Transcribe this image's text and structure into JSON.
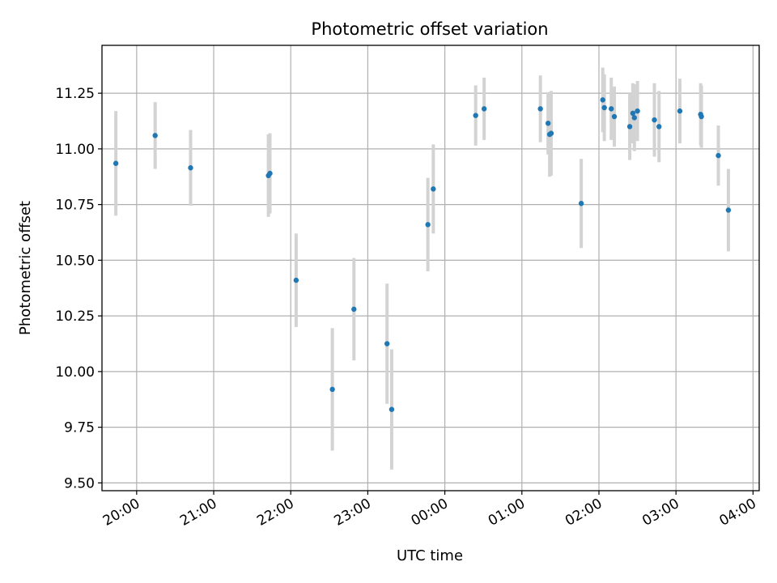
{
  "chart_data": {
    "type": "scatter",
    "title": "Photometric offset variation",
    "xlabel": "UTC time",
    "ylabel": "Photometric offset",
    "grid": true,
    "xlim": [
      -4.45,
      4.08
    ],
    "ylim": [
      9.465,
      11.465
    ],
    "x_unit": "hours relative to 00:00 UTC",
    "x_ticks": [
      {
        "value": -4,
        "label": "20:00"
      },
      {
        "value": -3,
        "label": "21:00"
      },
      {
        "value": -2,
        "label": "22:00"
      },
      {
        "value": -1,
        "label": "23:00"
      },
      {
        "value": 0,
        "label": "00:00"
      },
      {
        "value": 1,
        "label": "01:00"
      },
      {
        "value": 2,
        "label": "02:00"
      },
      {
        "value": 3,
        "label": "03:00"
      },
      {
        "value": 4,
        "label": "04:00"
      }
    ],
    "y_ticks": [
      {
        "value": 9.5,
        "label": "9.50"
      },
      {
        "value": 9.75,
        "label": "9.75"
      },
      {
        "value": 10.0,
        "label": "10.00"
      },
      {
        "value": 10.25,
        "label": "10.25"
      },
      {
        "value": 10.5,
        "label": "10.50"
      },
      {
        "value": 10.75,
        "label": "10.75"
      },
      {
        "value": 11.0,
        "label": "11.00"
      },
      {
        "value": 11.25,
        "label": "11.25"
      }
    ],
    "colors": {
      "point": "#1f77b4",
      "errorbar": "#d3d3d3",
      "grid": "#b0b0b0"
    },
    "series": [
      {
        "points": [
          {
            "x": -4.27,
            "y": 10.935,
            "err": 0.235
          },
          {
            "x": -3.76,
            "y": 11.06,
            "err": 0.15
          },
          {
            "x": -3.3,
            "y": 10.915,
            "err": 0.17
          },
          {
            "x": -2.29,
            "y": 10.88,
            "err": 0.185
          },
          {
            "x": -2.27,
            "y": 10.89,
            "err": 0.18
          },
          {
            "x": -1.93,
            "y": 10.41,
            "err": 0.21
          },
          {
            "x": -1.46,
            "y": 9.92,
            "err": 0.275
          },
          {
            "x": -1.18,
            "y": 10.28,
            "err": 0.23
          },
          {
            "x": -0.75,
            "y": 10.125,
            "err": 0.27
          },
          {
            "x": -0.69,
            "y": 9.83,
            "err": 0.27
          },
          {
            "x": -0.22,
            "y": 10.66,
            "err": 0.21
          },
          {
            "x": -0.15,
            "y": 10.82,
            "err": 0.2
          },
          {
            "x": 0.4,
            "y": 11.15,
            "err": 0.135
          },
          {
            "x": 0.51,
            "y": 11.18,
            "err": 0.14
          },
          {
            "x": 1.24,
            "y": 11.18,
            "err": 0.15
          },
          {
            "x": 1.34,
            "y": 11.115,
            "err": 0.14
          },
          {
            "x": 1.36,
            "y": 11.065,
            "err": 0.19
          },
          {
            "x": 1.38,
            "y": 11.07,
            "err": 0.19
          },
          {
            "x": 1.77,
            "y": 10.755,
            "err": 0.2
          },
          {
            "x": 2.05,
            "y": 11.22,
            "err": 0.145
          },
          {
            "x": 2.07,
            "y": 11.185,
            "err": 0.15
          },
          {
            "x": 2.16,
            "y": 11.18,
            "err": 0.14
          },
          {
            "x": 2.2,
            "y": 11.145,
            "err": 0.135
          },
          {
            "x": 2.4,
            "y": 11.1,
            "err": 0.15
          },
          {
            "x": 2.44,
            "y": 11.16,
            "err": 0.135
          },
          {
            "x": 2.46,
            "y": 11.14,
            "err": 0.15
          },
          {
            "x": 2.5,
            "y": 11.17,
            "err": 0.135
          },
          {
            "x": 2.72,
            "y": 11.13,
            "err": 0.165
          },
          {
            "x": 2.78,
            "y": 11.1,
            "err": 0.16
          },
          {
            "x": 3.05,
            "y": 11.17,
            "err": 0.145
          },
          {
            "x": 3.32,
            "y": 11.155,
            "err": 0.14
          },
          {
            "x": 3.33,
            "y": 11.145,
            "err": 0.14
          },
          {
            "x": 3.55,
            "y": 10.97,
            "err": 0.135
          },
          {
            "x": 3.68,
            "y": 10.725,
            "err": 0.185
          }
        ]
      }
    ]
  }
}
